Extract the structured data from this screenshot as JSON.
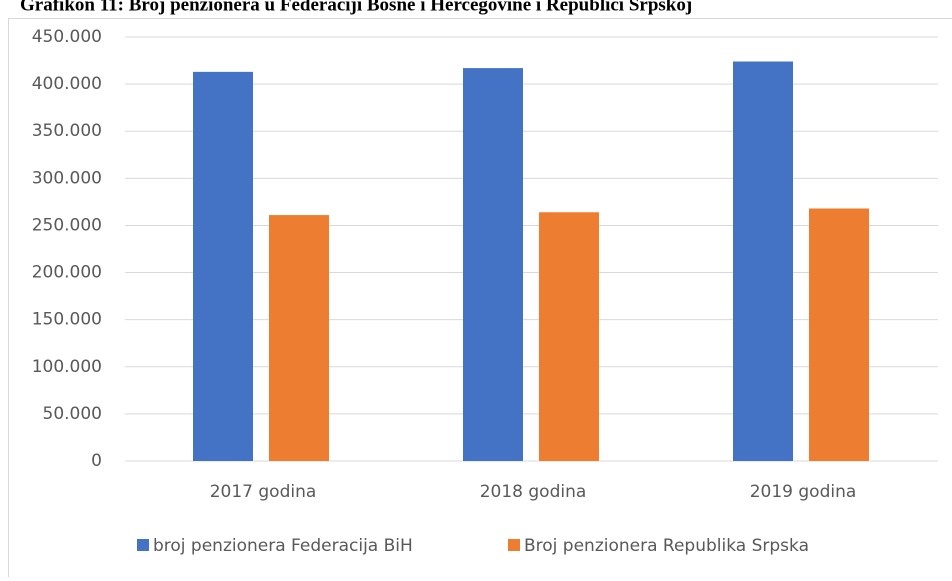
{
  "chart_data": {
    "type": "bar",
    "title": "Grafikon 11: Broj penzionera u Federaciji Bosne i Hercegovine i Republici Srpskoj",
    "categories": [
      "2017 godina",
      "2018 godina",
      "2019 godina"
    ],
    "series": [
      {
        "name": "broj penzionera Federacija BiH",
        "color": "#4472c4",
        "values": [
          413000,
          417000,
          424000
        ]
      },
      {
        "name": "Broj penzionera Republika Srpska",
        "color": "#ed7d31",
        "values": [
          261000,
          264000,
          268000
        ]
      }
    ],
    "ylim": [
      0,
      450000
    ],
    "yticks": [
      0,
      {
        "value": 50000,
        "label": "50.000"
      },
      {
        "value": 100000,
        "label": "100.000"
      },
      {
        "value": 150000,
        "label": "150.000"
      },
      {
        "value": 200000,
        "label": "200.000"
      },
      {
        "value": 250000,
        "label": "250.000"
      },
      {
        "value": 300000,
        "label": "300.000"
      },
      {
        "value": 350000,
        "label": "350.000"
      },
      {
        "value": 400000,
        "label": "400.000"
      },
      {
        "value": 450000,
        "label": "450.000"
      }
    ],
    "grid": true,
    "legend": "bottom"
  }
}
